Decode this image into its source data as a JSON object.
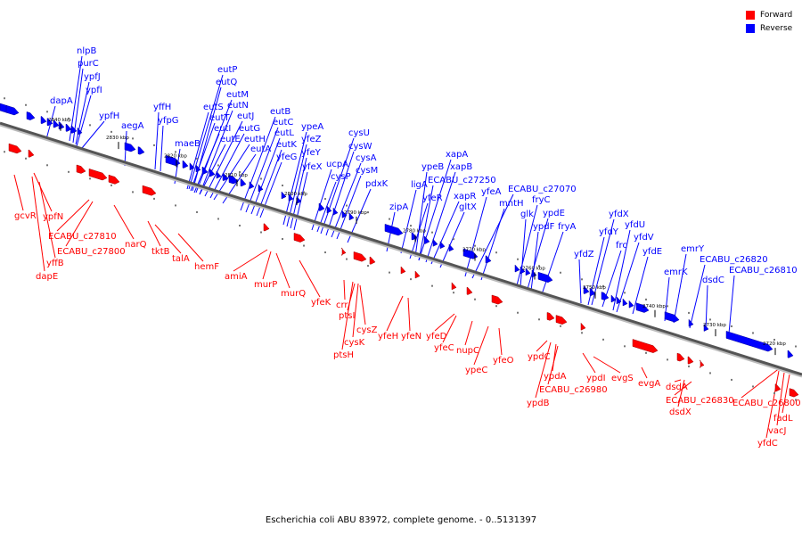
{
  "title": "Escherichia coli ABU 83972, complete genome. - 0..5131397",
  "legend": [
    {
      "label": "Forward",
      "color": "#ff0000"
    },
    {
      "label": "Reverse",
      "color": "#0000ff"
    }
  ],
  "colors": {
    "forward": "#ff0000",
    "reverse": "#0000ff",
    "axis": "#555555"
  },
  "ticks": [
    "2840 kbp",
    "2830 kbp",
    "2820 kbp",
    "2810 kbp",
    "2800 kbp",
    "2790 kbp",
    "2780 kbp",
    "2770 kbp",
    "2760 kbp",
    "2750 kbp",
    "2740 kbp",
    "2730 kbp",
    "2720 kbp"
  ],
  "reverse_genes": [
    "nlpB",
    "purC",
    "ypfJ",
    "dapA",
    "ypfI",
    "ypfH",
    "aegA",
    "yffH",
    "yfpG",
    "maeB",
    "eutP",
    "eutQ",
    "eutM",
    "eutS",
    "eutN",
    "eutT",
    "eutJ",
    "eutI",
    "eutG",
    "eutE",
    "eutH",
    "eutB",
    "eutC",
    "eutL",
    "eutA",
    "eutK",
    "yfeG",
    "ypeA",
    "yfeZ",
    "yfeY",
    "yfeX",
    "cysU",
    "cysW",
    "ucpA",
    "cysA",
    "cysP",
    "cysM",
    "pdxK",
    "xapA",
    "ypeB",
    "xapB",
    "ligA",
    "ECABU_c27250",
    "yfeR",
    "xapR",
    "zipA",
    "gltX",
    "yfeA",
    "ECABU_c27070",
    "mntH",
    "fryC",
    "glk",
    "ypdE",
    "ypdF",
    "fryA",
    "yfdX",
    "yfdZ",
    "yfdY",
    "yfdU",
    "frc",
    "yfdV",
    "yfdE",
    "emrY",
    "emrK",
    "ECABU_c26820",
    "ECABU_c26810",
    "dsdC"
  ],
  "forward_genes": [
    "gcvR",
    "ypfN",
    "ECABU_c27810",
    "yffB",
    "ECABU_c27800",
    "dapE",
    "narQ",
    "tktB",
    "talA",
    "hemF",
    "amiA",
    "murP",
    "murQ",
    "yfeK",
    "crr",
    "ptsI",
    "cysZ",
    "cysK",
    "ptsH",
    "yfeH",
    "yfeN",
    "yfeD",
    "yfeC",
    "nupC",
    "ypeC",
    "yfeO",
    "ypdC",
    "ypdA",
    "ECABU_c26980",
    "ypdB",
    "ypdI",
    "evgS",
    "evgA",
    "dsdA",
    "ECABU_c26830",
    "dsdX",
    "ECABU_c26800",
    "fadL",
    "vacJ",
    "yfdC"
  ]
}
